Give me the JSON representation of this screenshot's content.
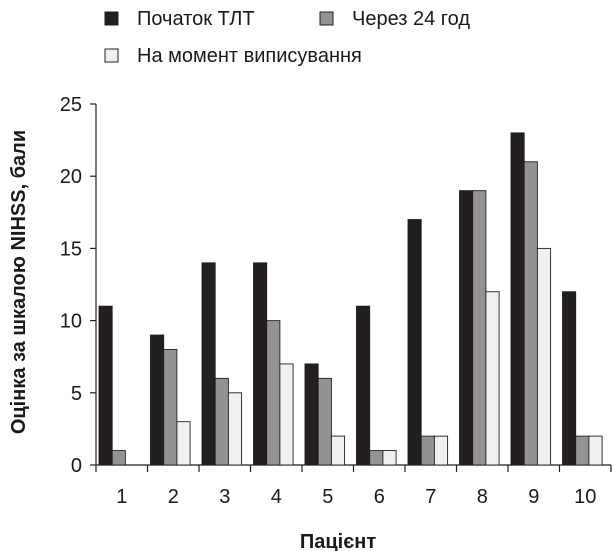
{
  "chart_data": {
    "type": "bar",
    "title": "",
    "xlabel": "Пацієнт",
    "ylabel": "Оцінка за шкалою NIHSS, бали",
    "categories": [
      "1",
      "2",
      "3",
      "4",
      "5",
      "6",
      "7",
      "8",
      "9",
      "10"
    ],
    "ylim": [
      0,
      25
    ],
    "yticks": [
      0,
      5,
      10,
      15,
      20,
      25
    ],
    "grid": false,
    "legend_position": "top-left",
    "series": [
      {
        "name": "Початок ТЛТ",
        "color": "#231f20",
        "values": [
          11,
          9,
          14,
          14,
          7,
          11,
          17,
          19,
          23,
          12
        ]
      },
      {
        "name": "Через 24 год",
        "color": "#939393",
        "values": [
          1,
          8,
          6,
          10,
          6,
          1,
          2,
          19,
          21,
          2
        ]
      },
      {
        "name": "На момент виписування",
        "color": "#f0f0ef",
        "values": [
          0,
          3,
          5,
          7,
          2,
          1,
          2,
          12,
          15,
          2
        ]
      }
    ]
  }
}
